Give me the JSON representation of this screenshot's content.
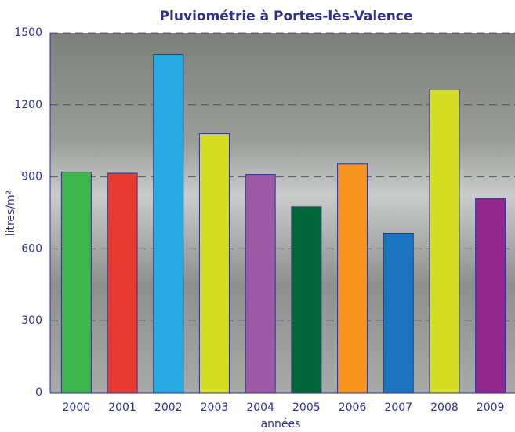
{
  "chart_data": {
    "type": "bar",
    "title": "Pluviométrie à Portes-lès-Valence",
    "x_label": "années",
    "y_label": "litres/m²",
    "categories": [
      "2000",
      "2001",
      "2002",
      "2003",
      "2004",
      "2005",
      "2006",
      "2007",
      "2008",
      "2009"
    ],
    "values": [
      920,
      915,
      1410,
      1080,
      910,
      775,
      955,
      665,
      1265,
      810
    ],
    "colors": [
      "#3db54a",
      "#e63a33",
      "#27aae1",
      "#d6de23",
      "#9c59a6",
      "#006838",
      "#f7931e",
      "#1c75bc",
      "#d6de23",
      "#92278f"
    ],
    "ylim": [
      0,
      1500
    ],
    "yticks": [
      0,
      300,
      600,
      900,
      1200,
      1500
    ],
    "grid": true
  }
}
